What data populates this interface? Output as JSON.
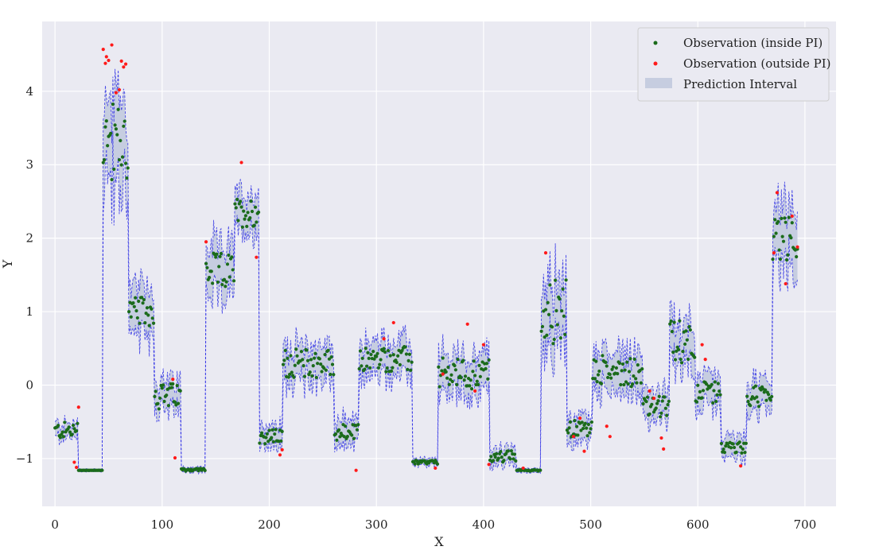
{
  "chart_data": {
    "type": "scatter",
    "title": "",
    "xlabel": "X",
    "ylabel": "Y",
    "xlim": [
      -12,
      729
    ],
    "ylim": [
      -1.65,
      4.95
    ],
    "xticks": [
      0,
      100,
      200,
      300,
      400,
      500,
      600,
      700
    ],
    "yticks": [
      -1,
      0,
      1,
      2,
      3,
      4
    ],
    "grid": true,
    "legend_position": "top-right",
    "colors": {
      "plot_background": "#eaeaf2",
      "grid": "#ffffff",
      "inside": "#1b6b1b",
      "outside": "#ff1a1a",
      "band_fill": "#c6cde0",
      "band_line": "#2e2ee6"
    },
    "legend": [
      {
        "key": "inside",
        "label": "Observation (inside PI)"
      },
      {
        "key": "outside",
        "label": "Observation (outside PI)"
      },
      {
        "key": "band",
        "label": "Prediction Interval"
      }
    ],
    "segments": [
      {
        "start": 0,
        "end": 21,
        "level": -0.62,
        "spread": 0.12,
        "width": 0.16
      },
      {
        "start": 22,
        "end": 44,
        "level": -1.16,
        "spread": 0.0,
        "width": 0.03
      },
      {
        "start": 45,
        "end": 68,
        "level": 3.3,
        "spread": 0.55,
        "width": 0.95
      },
      {
        "start": 69,
        "end": 92,
        "level": 1.0,
        "spread": 0.2,
        "width": 0.55
      },
      {
        "start": 93,
        "end": 117,
        "level": -0.15,
        "spread": 0.18,
        "width": 0.35
      },
      {
        "start": 118,
        "end": 140,
        "level": -1.15,
        "spread": 0.02,
        "width": 0.06
      },
      {
        "start": 141,
        "end": 167,
        "level": 1.55,
        "spread": 0.25,
        "width": 0.55
      },
      {
        "start": 168,
        "end": 190,
        "level": 2.35,
        "spread": 0.2,
        "width": 0.45
      },
      {
        "start": 191,
        "end": 212,
        "level": -0.7,
        "spread": 0.1,
        "width": 0.25
      },
      {
        "start": 213,
        "end": 260,
        "level": 0.3,
        "spread": 0.2,
        "width": 0.4
      },
      {
        "start": 261,
        "end": 283,
        "level": -0.65,
        "spread": 0.12,
        "width": 0.3
      },
      {
        "start": 284,
        "end": 333,
        "level": 0.35,
        "spread": 0.18,
        "width": 0.4
      },
      {
        "start": 334,
        "end": 357,
        "level": -1.05,
        "spread": 0.03,
        "width": 0.08
      },
      {
        "start": 358,
        "end": 405,
        "level": 0.15,
        "spread": 0.22,
        "width": 0.45
      },
      {
        "start": 406,
        "end": 430,
        "level": -0.97,
        "spread": 0.08,
        "width": 0.2
      },
      {
        "start": 431,
        "end": 453,
        "level": -1.16,
        "spread": 0.01,
        "width": 0.05
      },
      {
        "start": 454,
        "end": 477,
        "level": 1.0,
        "spread": 0.45,
        "width": 0.7
      },
      {
        "start": 478,
        "end": 501,
        "level": -0.6,
        "spread": 0.12,
        "width": 0.3
      },
      {
        "start": 502,
        "end": 548,
        "level": 0.2,
        "spread": 0.22,
        "width": 0.45
      },
      {
        "start": 549,
        "end": 573,
        "level": -0.3,
        "spread": 0.15,
        "width": 0.35
      },
      {
        "start": 574,
        "end": 597,
        "level": 0.6,
        "spread": 0.3,
        "width": 0.45
      },
      {
        "start": 598,
        "end": 621,
        "level": -0.1,
        "spread": 0.15,
        "width": 0.35
      },
      {
        "start": 622,
        "end": 645,
        "level": -0.85,
        "spread": 0.08,
        "width": 0.25
      },
      {
        "start": 646,
        "end": 669,
        "level": -0.15,
        "spread": 0.15,
        "width": 0.35
      },
      {
        "start": 670,
        "end": 693,
        "level": 2.0,
        "spread": 0.3,
        "width": 0.65
      }
    ],
    "outside_points": [
      {
        "x": 45,
        "y": 4.57
      },
      {
        "x": 47,
        "y": 4.38
      },
      {
        "x": 48,
        "y": 4.47
      },
      {
        "x": 50,
        "y": 4.42
      },
      {
        "x": 53,
        "y": 4.63
      },
      {
        "x": 57,
        "y": 3.98
      },
      {
        "x": 60,
        "y": 4.02
      },
      {
        "x": 62,
        "y": 4.41
      },
      {
        "x": 64,
        "y": 4.33
      },
      {
        "x": 66,
        "y": 4.37
      },
      {
        "x": 18,
        "y": -1.05
      },
      {
        "x": 22,
        "y": -0.3
      },
      {
        "x": 20,
        "y": -1.12
      },
      {
        "x": 112,
        "y": -0.99
      },
      {
        "x": 141,
        "y": 1.95
      },
      {
        "x": 174,
        "y": 3.03
      },
      {
        "x": 188,
        "y": 1.74
      },
      {
        "x": 210,
        "y": -0.95
      },
      {
        "x": 212,
        "y": -0.88
      },
      {
        "x": 281,
        "y": -1.16
      },
      {
        "x": 307,
        "y": 0.63
      },
      {
        "x": 316,
        "y": 0.85
      },
      {
        "x": 355,
        "y": -1.13
      },
      {
        "x": 362,
        "y": 0.15
      },
      {
        "x": 385,
        "y": 0.83
      },
      {
        "x": 392,
        "y": -0.08
      },
      {
        "x": 400,
        "y": 0.55
      },
      {
        "x": 405,
        "y": -1.08
      },
      {
        "x": 437,
        "y": -1.13
      },
      {
        "x": 458,
        "y": 1.8
      },
      {
        "x": 484,
        "y": -0.7
      },
      {
        "x": 490,
        "y": -0.45
      },
      {
        "x": 494,
        "y": -0.9
      },
      {
        "x": 515,
        "y": -0.56
      },
      {
        "x": 518,
        "y": -0.7
      },
      {
        "x": 555,
        "y": -0.08
      },
      {
        "x": 559,
        "y": -0.18
      },
      {
        "x": 566,
        "y": -0.72
      },
      {
        "x": 568,
        "y": -0.87
      },
      {
        "x": 607,
        "y": 0.35
      },
      {
        "x": 640,
        "y": -1.1
      },
      {
        "x": 671,
        "y": 1.8
      },
      {
        "x": 674,
        "y": 2.62
      },
      {
        "x": 682,
        "y": 1.38
      },
      {
        "x": 688,
        "y": 2.3
      },
      {
        "x": 693,
        "y": 1.88
      },
      {
        "x": 110,
        "y": 0.08
      },
      {
        "x": 604,
        "y": 0.55
      }
    ]
  }
}
